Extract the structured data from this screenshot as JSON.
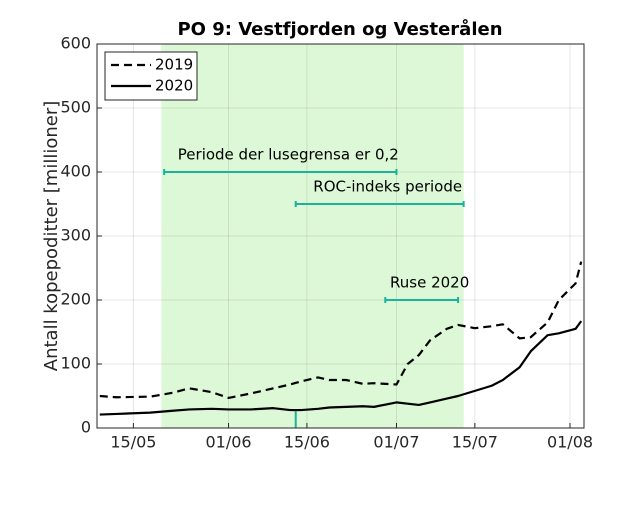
{
  "chart_data": {
    "type": "line",
    "title": "PO 9: Vestfjorden og Vesterålen",
    "ylabel": "Antall kopepoditter [millioner]",
    "x": [
      129,
      132,
      138,
      142,
      145,
      149,
      152,
      156,
      160,
      163,
      165,
      168,
      170,
      173,
      176,
      178,
      182,
      184,
      186,
      188,
      191,
      193,
      196,
      199,
      201,
      204,
      206,
      209,
      211,
      214,
      215
    ],
    "series": [
      {
        "name": "2019",
        "color": "#000000",
        "dash": true,
        "values": [
          50,
          48,
          49,
          55,
          62,
          56,
          47,
          54,
          62,
          68,
          73,
          79,
          75,
          75,
          69,
          70,
          68,
          100,
          114,
          137,
          155,
          161,
          156,
          159,
          162,
          140,
          142,
          165,
          200,
          226,
          260
        ]
      },
      {
        "name": "2020",
        "color": "#000000",
        "dash": false,
        "values": [
          21,
          22,
          24,
          27,
          29,
          30,
          29,
          29,
          31,
          28,
          28,
          30,
          32,
          33,
          34,
          33,
          40,
          38,
          36,
          40,
          46,
          50,
          58,
          66,
          75,
          95,
          120,
          145,
          148,
          155,
          167
        ]
      }
    ],
    "xlim": [
      128.5,
      215.5
    ],
    "xticks": [
      {
        "value": 135,
        "label": "15/05"
      },
      {
        "value": 152,
        "label": "01/06"
      },
      {
        "value": 166,
        "label": "15/06"
      },
      {
        "value": 182,
        "label": "01/07"
      },
      {
        "value": 196,
        "label": "15/07"
      },
      {
        "value": 213,
        "label": "01/08"
      }
    ],
    "ylim": [
      0,
      600
    ],
    "yticks": [
      0,
      100,
      200,
      300,
      400,
      500,
      600
    ],
    "grid": true,
    "legend": "upper left",
    "shaded_region": {
      "x": [
        140,
        194
      ],
      "color": "#dcf8d6"
    },
    "annotations": [
      {
        "text": "Periode der lusegrensa er 0,2",
        "x": [
          140.5,
          182
        ],
        "y": 400,
        "color": "#1bb39e"
      },
      {
        "text": "ROC-indeks periode",
        "x": [
          164,
          194
        ],
        "y": 350,
        "color": "#1bb39e"
      },
      {
        "text": "Ruse 2020",
        "x": [
          180,
          193
        ],
        "y": 200,
        "color": "#1bb39e"
      }
    ],
    "marker": {
      "x": 164,
      "color": "#1bb39e"
    }
  }
}
